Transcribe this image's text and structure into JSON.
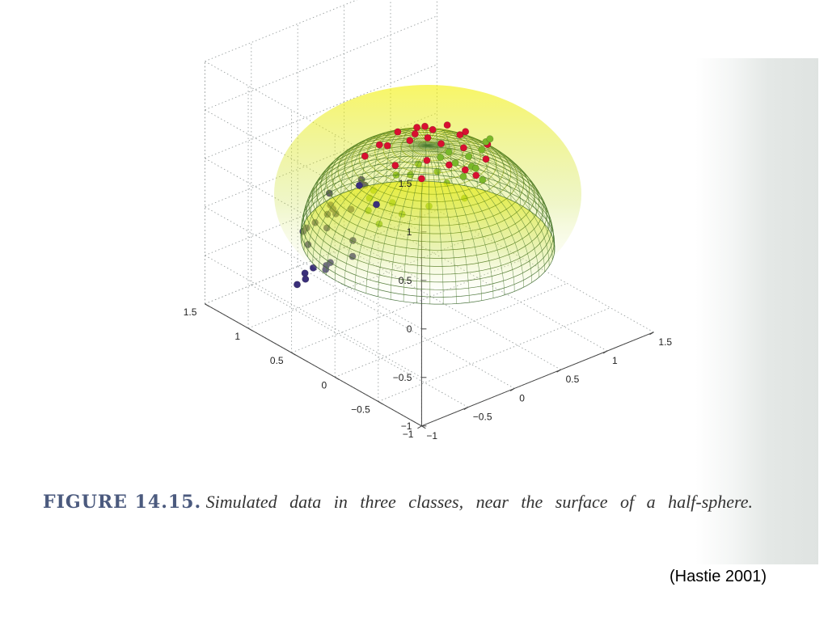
{
  "caption": {
    "label": "FIGURE 14.15.",
    "text": "Simulated data in three classes, near the surface of a half-sphere."
  },
  "citation": "(Hastie 2001)",
  "colors": {
    "class_purple": "#3a2f7a",
    "class_red": "#d81030",
    "class_green": "#7ab82a",
    "surface_top": "#f4f000",
    "surface_bottom": "#2e5e20",
    "grid": "#9aa0a0"
  },
  "chart_data": {
    "type": "scatter",
    "projection": "3d",
    "title": "",
    "xlabel": "",
    "ylabel": "",
    "zlabel": "",
    "xlim": [
      -1,
      1.5
    ],
    "ylim": [
      -1,
      1.5
    ],
    "zlim": [
      -1,
      1.5
    ],
    "grid": true,
    "x_ticks": [
      "1.5",
      "1",
      "0.5",
      "0",
      "−0.5",
      "−1"
    ],
    "y_ticks": [
      "−1",
      "−0.5",
      "0",
      "0.5",
      "1",
      "1.5"
    ],
    "z_ticks": [
      "1.5",
      "1",
      "0.5",
      "0",
      "−0.5",
      "−1"
    ],
    "surface": {
      "shape": "half-sphere",
      "radius": 1
    },
    "series": [
      {
        "points": [
          [
            -0.1,
            -0.9,
            0.42
          ],
          [
            -0.15,
            -0.95,
            0.3
          ],
          [
            0.0,
            -1.05,
            0.2
          ],
          [
            0.1,
            -1.0,
            0.1
          ],
          [
            0.25,
            -1.0,
            0.0
          ],
          [
            0.4,
            -0.95,
            -0.15
          ],
          [
            0.5,
            -0.85,
            -0.3
          ],
          [
            0.65,
            -0.8,
            -0.45
          ],
          [
            0.15,
            -0.85,
            0.55
          ],
          [
            0.05,
            -0.78,
            0.62
          ],
          [
            0.3,
            -0.8,
            0.45
          ],
          [
            0.55,
            -0.7,
            0.2
          ],
          [
            0.7,
            -0.65,
            0.05
          ],
          [
            0.85,
            -0.55,
            -0.1
          ],
          [
            0.9,
            -0.45,
            -0.3
          ],
          [
            0.75,
            -0.4,
            -0.5
          ],
          [
            0.45,
            -0.6,
            0.35
          ],
          [
            0.6,
            -0.5,
            0.4
          ],
          [
            0.35,
            -0.35,
            0.55
          ],
          [
            0.8,
            -0.3,
            0.1
          ],
          [
            0.95,
            -0.2,
            -0.25
          ],
          [
            0.55,
            -0.2,
            0.45
          ],
          [
            0.2,
            -0.55,
            0.7
          ],
          [
            -0.05,
            -0.6,
            0.65
          ]
        ]
      },
      {
        "points": [
          [
            0.0,
            0.0,
            1.08
          ],
          [
            0.1,
            -0.1,
            1.04
          ],
          [
            -0.1,
            0.05,
            1.05
          ],
          [
            0.05,
            0.1,
            1.1
          ],
          [
            -0.15,
            -0.15,
            0.98
          ],
          [
            0.2,
            0.05,
            1.0
          ],
          [
            -0.2,
            0.2,
            1.0
          ],
          [
            0.25,
            -0.2,
            0.95
          ],
          [
            -0.3,
            -0.05,
            0.97
          ],
          [
            0.3,
            0.25,
            0.95
          ],
          [
            -0.05,
            0.3,
            1.02
          ],
          [
            0.15,
            0.35,
            1.0
          ],
          [
            -0.35,
            0.3,
            0.92
          ],
          [
            0.4,
            0.05,
            0.92
          ],
          [
            -0.25,
            -0.3,
            0.9
          ],
          [
            0.0,
            -0.35,
            0.93
          ],
          [
            0.35,
            -0.35,
            0.85
          ],
          [
            -0.45,
            0.1,
            0.88
          ],
          [
            0.1,
            0.5,
            0.9
          ],
          [
            -0.1,
            0.55,
            0.85
          ],
          [
            0.5,
            0.35,
            0.8
          ],
          [
            0.45,
            -0.1,
            0.82
          ],
          [
            0.05,
            0.45,
            0.55
          ]
        ]
      },
      {
        "points": [
          [
            0.9,
            0.5,
            0.05
          ],
          [
            1.0,
            0.35,
            -0.1
          ],
          [
            1.1,
            0.4,
            -0.25
          ],
          [
            0.95,
            0.7,
            -0.05
          ],
          [
            0.8,
            0.85,
            0.0
          ],
          [
            0.7,
            0.95,
            0.1
          ],
          [
            0.6,
            1.0,
            0.2
          ],
          [
            0.5,
            1.05,
            0.3
          ],
          [
            0.4,
            1.0,
            0.45
          ],
          [
            0.3,
            0.95,
            0.55
          ],
          [
            1.05,
            0.6,
            -0.35
          ],
          [
            0.85,
            1.0,
            -0.2
          ],
          [
            0.6,
            1.15,
            -0.1
          ],
          [
            0.7,
            1.05,
            -0.3
          ],
          [
            0.95,
            0.9,
            -0.45
          ],
          [
            1.1,
            0.75,
            -0.55
          ],
          [
            0.5,
            0.85,
            0.1
          ],
          [
            0.35,
            0.8,
            0.3
          ],
          [
            0.25,
            0.75,
            0.35
          ],
          [
            0.75,
            0.6,
            0.2
          ],
          [
            0.9,
            0.2,
            -0.2
          ],
          [
            1.15,
            0.55,
            -0.6
          ],
          [
            0.55,
            0.65,
            0.35
          ],
          [
            0.4,
            0.6,
            0.5
          ]
        ]
      }
    ]
  }
}
